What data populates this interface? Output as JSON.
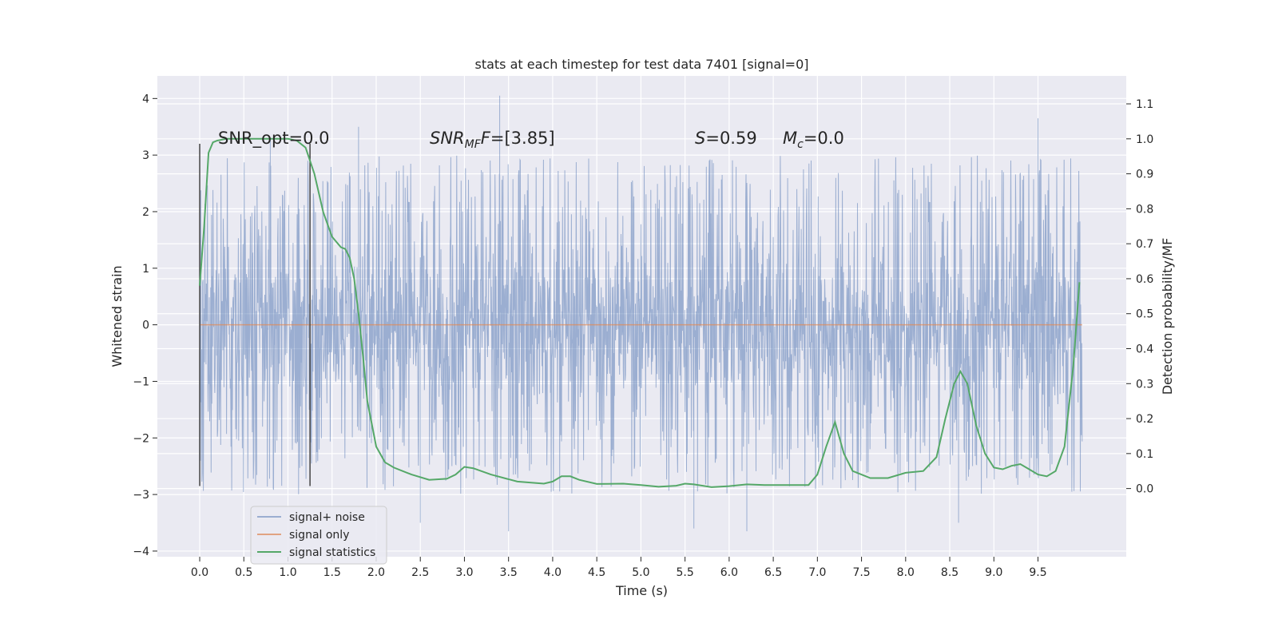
{
  "chart_data": {
    "type": "line",
    "title": "stats at each timestep for test data 7401 [signal=0]",
    "xlabel": "Time (s)",
    "ylabel": "Whitened strain",
    "y2label": "Detection probability/MF",
    "xlim": [
      -0.48,
      10.5
    ],
    "ylim": [
      -4.1,
      4.4
    ],
    "y2lim": [
      -0.195,
      1.18
    ],
    "x_ticks": [
      "0.0",
      "0.5",
      "1.0",
      "1.5",
      "2.0",
      "2.5",
      "3.0",
      "3.5",
      "4.0",
      "4.5",
      "5.0",
      "5.5",
      "6.0",
      "6.5",
      "7.0",
      "7.5",
      "8.0",
      "8.5",
      "9.0",
      "9.5"
    ],
    "y_ticks": [
      "−4",
      "−3",
      "−2",
      "−1",
      "0",
      "1",
      "2",
      "3",
      "4"
    ],
    "y2_ticks": [
      "0.0",
      "0.1",
      "0.2",
      "0.3",
      "0.4",
      "0.5",
      "0.6",
      "0.7",
      "0.8",
      "0.9",
      "1.0",
      "1.1"
    ],
    "grid": true,
    "legend_position": "lower-left",
    "legend": [
      "signal+ noise",
      "signal only",
      "signal statistics"
    ],
    "colors": {
      "background": "#eaeaf2",
      "grid": "#ffffff",
      "noise": "#4c72b0",
      "signal": "#dd8452",
      "stats": "#55a868",
      "marker": "#444444"
    },
    "annotations": {
      "snr_opt": "SNR_opt=0.0",
      "snr_mf_prefix": "SNR",
      "snr_mf_sub": "MF",
      "snr_mf_value": "=[3.85]",
      "s_prefix": "S",
      "s_value": "=0.59",
      "mc_prefix": "M",
      "mc_sub": "c",
      "mc_value": "=0.0"
    },
    "noise_series": {
      "name": "signal+ noise",
      "x_range": [
        0.0,
        10.0
      ],
      "min": -3.7,
      "max": 4.05,
      "peaks": [
        [
          3.4,
          4.05
        ],
        [
          9.5,
          3.65
        ],
        [
          1.8,
          3.5
        ],
        [
          0.8,
          3.3
        ]
      ],
      "troughs": [
        [
          3.5,
          -3.65
        ],
        [
          5.6,
          -3.6
        ],
        [
          6.2,
          -3.65
        ],
        [
          8.6,
          -3.5
        ],
        [
          2.5,
          -3.5
        ]
      ]
    },
    "signal_series": {
      "name": "signal only",
      "x": [
        0.0,
        10.0
      ],
      "y": [
        0.0,
        0.0
      ]
    },
    "stats_series": {
      "name": "signal statistics",
      "x": [
        0.0,
        0.05,
        0.1,
        0.15,
        0.2,
        0.3,
        0.5,
        0.8,
        1.0,
        1.1,
        1.2,
        1.3,
        1.4,
        1.5,
        1.6,
        1.65,
        1.7,
        1.75,
        1.8,
        1.85,
        1.9,
        2.0,
        2.1,
        2.2,
        2.4,
        2.6,
        2.8,
        2.9,
        3.0,
        3.1,
        3.3,
        3.6,
        3.9,
        4.0,
        4.1,
        4.2,
        4.3,
        4.5,
        4.8,
        5.0,
        5.2,
        5.4,
        5.5,
        5.6,
        5.8,
        6.0,
        6.2,
        6.4,
        6.6,
        6.9,
        7.0,
        7.1,
        7.2,
        7.3,
        7.4,
        7.6,
        7.8,
        8.0,
        8.2,
        8.35,
        8.45,
        8.55,
        8.62,
        8.7,
        8.8,
        8.9,
        9.0,
        9.1,
        9.2,
        9.3,
        9.4,
        9.5,
        9.6,
        9.7,
        9.8,
        9.9,
        9.97
      ],
      "y": [
        0.58,
        0.75,
        0.96,
        0.99,
        0.995,
        1.0,
        1.0,
        1.0,
        1.0,
        0.995,
        0.975,
        0.9,
        0.79,
        0.72,
        0.69,
        0.685,
        0.66,
        0.6,
        0.5,
        0.38,
        0.25,
        0.12,
        0.075,
        0.06,
        0.04,
        0.025,
        0.028,
        0.04,
        0.062,
        0.058,
        0.04,
        0.02,
        0.014,
        0.02,
        0.035,
        0.035,
        0.025,
        0.013,
        0.014,
        0.01,
        0.005,
        0.008,
        0.014,
        0.012,
        0.004,
        0.007,
        0.012,
        0.01,
        0.01,
        0.01,
        0.04,
        0.12,
        0.19,
        0.1,
        0.05,
        0.03,
        0.03,
        0.045,
        0.05,
        0.09,
        0.2,
        0.3,
        0.335,
        0.3,
        0.18,
        0.1,
        0.06,
        0.055,
        0.065,
        0.07,
        0.055,
        0.04,
        0.035,
        0.05,
        0.12,
        0.35,
        0.59
      ]
    },
    "vertical_markers": [
      {
        "x": 0.0,
        "y_from": -2.85,
        "y_to": 3.2
      },
      {
        "x": 1.25,
        "y_from": -2.85,
        "y_to": 3.2
      }
    ]
  }
}
